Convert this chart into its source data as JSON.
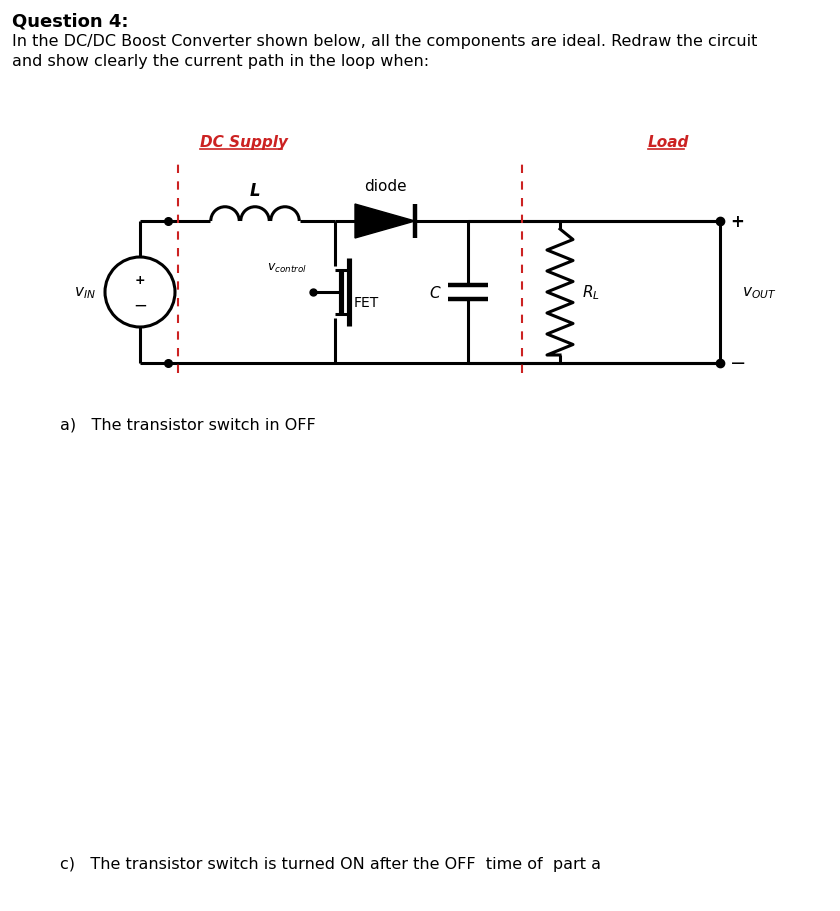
{
  "title": "Question 4:",
  "intro_line1": "In the DC/DC Boost Converter shown below, all the components are ideal. Redraw the circuit",
  "intro_line2": "and show clearly the current path in the loop when:",
  "label_dc_supply": "DC Supply",
  "label_load": "Load",
  "label_diode": "diode",
  "label_L": "L",
  "label_C": "C",
  "label_FET": "FET",
  "label_vcontrol": "$v_{control}$",
  "label_vin": "$v_{IN}$",
  "label_vout": "$v_{OUT}$",
  "label_RL": "$R_L$",
  "caption_a": "a)   The transistor switch in OFF",
  "caption_c": "c)   The transistor switch is turned ON after the OFF  time of  part a",
  "bg_color": "#ffffff",
  "lc": "#000000",
  "dc": "#cc2222",
  "red_text": "#cc2222"
}
